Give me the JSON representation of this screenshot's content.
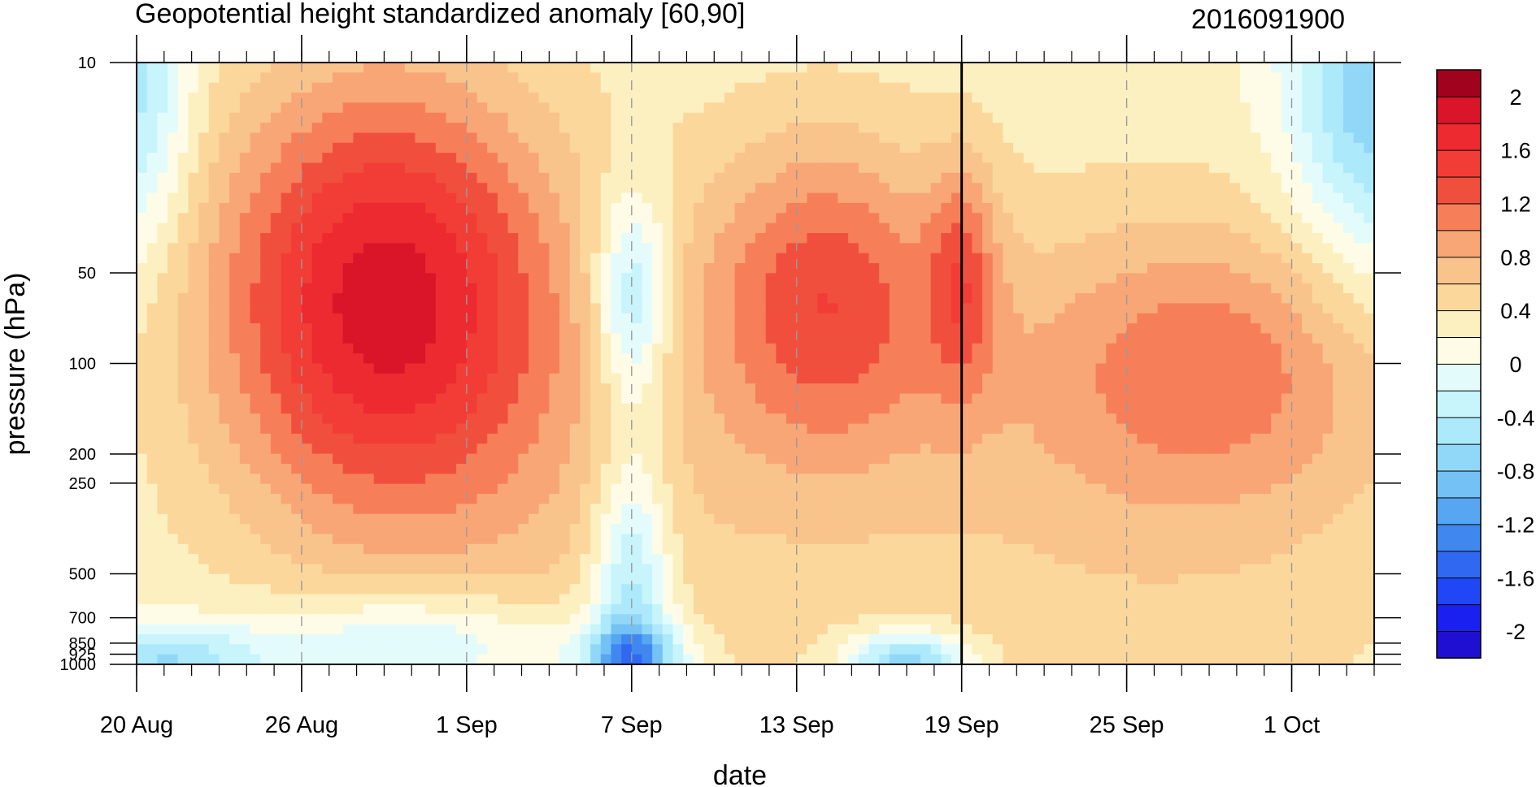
{
  "chart_data": {
    "type": "heatmap",
    "title": "Geopotential height standardized anomaly [60,90]",
    "right_title": "2016091900",
    "xlabel": "date",
    "ylabel": "pressure (hPa)",
    "y_scale": "log",
    "y_direction": "pressure decreasing upward",
    "ylim": [
      1000,
      10
    ],
    "x_start": "2016-08-20",
    "x_end": "2016-10-04",
    "xlim": [
      "2016-08-20",
      "2016-10-05"
    ],
    "x_tick_labels": [
      {
        "date": "2016-08-20",
        "label": "20 Aug"
      },
      {
        "date": "2016-08-26",
        "label": "26 Aug"
      },
      {
        "date": "2016-09-01",
        "label": "1 Sep"
      },
      {
        "date": "2016-09-07",
        "label": "7 Sep"
      },
      {
        "date": "2016-09-13",
        "label": "13 Sep"
      },
      {
        "date": "2016-09-19",
        "label": "19 Sep"
      },
      {
        "date": "2016-09-25",
        "label": "25 Sep"
      },
      {
        "date": "2016-10-01",
        "label": "1 Oct"
      }
    ],
    "y_ticks": [
      {
        "value": 10,
        "label": "10"
      },
      {
        "value": 50,
        "label": "50"
      },
      {
        "value": 100,
        "label": "100"
      },
      {
        "value": 200,
        "label": "200"
      },
      {
        "value": 250,
        "label": "250"
      },
      {
        "value": 500,
        "label": "500"
      },
      {
        "value": 700,
        "label": "700"
      },
      {
        "value": 850,
        "label": "850"
      },
      {
        "value": 925,
        "label": "925"
      },
      {
        "value": 1000,
        "label": "1000"
      }
    ],
    "reference_line_date": "2016-09-19",
    "dashed_gridlines": "vertical at each labelled date",
    "colorbar": {
      "levels": [
        -2.2,
        -2,
        -1.8,
        -1.6,
        -1.4,
        -1.2,
        -1,
        -0.8,
        -0.6,
        -0.4,
        -0.2,
        0,
        0.2,
        0.4,
        0.6,
        0.8,
        1,
        1.2,
        1.4,
        1.6,
        1.8,
        2,
        2.2
      ],
      "colors": [
        "#1e0fd2",
        "#1a20f0",
        "#2146f5",
        "#3068f2",
        "#4088f0",
        "#57a6f2",
        "#74c2f5",
        "#91d8f8",
        "#ace9fb",
        "#c8f4fc",
        "#e4fbfc",
        "#fefce6",
        "#fcf0c1",
        "#fbd79c",
        "#f9c38c",
        "#f8a676",
        "#f67f5a",
        "#f14f3e",
        "#f23d36",
        "#ec2a30",
        "#da1529",
        "#a1031f"
      ],
      "labels": [
        "2",
        "1.6",
        "1.2",
        "0.8",
        "0.4",
        "0",
        "-0.4",
        "-0.8",
        "-1.2",
        "-1.6",
        "-2"
      ],
      "label_values": [
        2,
        1.6,
        1.2,
        0.8,
        0.4,
        0,
        -0.4,
        -0.8,
        -1.2,
        -1.6,
        -2
      ]
    },
    "field_centers": [
      {
        "date": "2016-08-29",
        "pressure": 60,
        "value": 1.85,
        "spread_days": 4.5,
        "spread_logp": 0.52
      },
      {
        "date": "2016-09-14",
        "pressure": 60,
        "value": 1.25,
        "spread_days": 3.2,
        "spread_logp": 0.38
      },
      {
        "date": "2016-09-28",
        "pressure": 100,
        "value": 0.95,
        "spread_days": 5.0,
        "spread_logp": 0.34
      },
      {
        "date": "2016-09-19",
        "pressure": 50,
        "value": 0.9,
        "spread_days": 0.9,
        "spread_logp": 0.28
      },
      {
        "date": "2016-09-05",
        "pressure": 300,
        "value": 0.5,
        "spread_days": 7.0,
        "spread_logp": 0.6
      },
      {
        "date": "2016-09-25",
        "pressure": 300,
        "value": 0.55,
        "spread_days": 9.0,
        "spread_logp": 0.65
      },
      {
        "date": "2016-08-20",
        "pressure": 12,
        "value": -0.55,
        "spread_days": 1.4,
        "spread_logp": 0.4
      },
      {
        "date": "2016-10-04",
        "pressure": 12,
        "value": -0.8,
        "spread_days": 2.2,
        "spread_logp": 0.45
      },
      {
        "date": "2016-09-07",
        "pressure": 60,
        "value": -0.7,
        "spread_days": 1.0,
        "spread_logp": 0.25
      },
      {
        "date": "2016-09-07",
        "pressure": 600,
        "value": -0.7,
        "spread_days": 1.0,
        "spread_logp": 0.35
      },
      {
        "date": "2016-08-21",
        "pressure": 960,
        "value": -0.6,
        "spread_days": 2.5,
        "spread_logp": 0.08
      },
      {
        "date": "2016-09-07",
        "pressure": 960,
        "value": -0.8,
        "spread_days": 1.4,
        "spread_logp": 0.08
      },
      {
        "date": "2016-09-17",
        "pressure": 980,
        "value": -0.9,
        "spread_days": 1.5,
        "spread_logp": 0.07
      },
      {
        "date": "2016-08-30",
        "pressure": 850,
        "value": -0.4,
        "spread_days": 4.0,
        "spread_logp": 0.12
      }
    ],
    "base_value": 0.25
  }
}
